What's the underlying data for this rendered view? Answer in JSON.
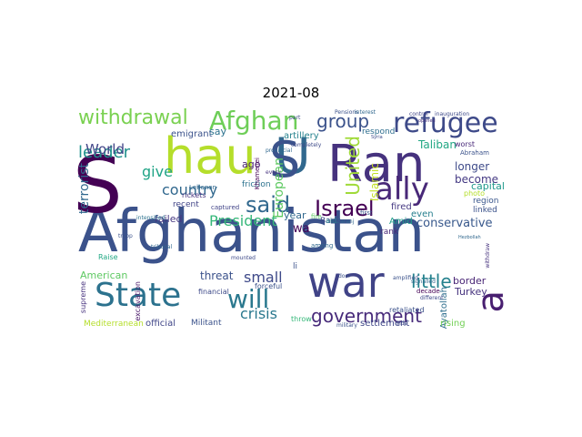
{
  "figure": {
    "title": "2021-08"
  },
  "word_cloud": {
    "words": [
      {
        "text": "Afghanistan",
        "color": "#3b528b"
      },
      {
        "text": "war",
        "color": "#404387"
      },
      {
        "text": "Ran",
        "color": "#46327e"
      },
      {
        "text": "S",
        "color": "#440154"
      },
      {
        "text": "hau",
        "color": "#b5de2b"
      },
      {
        "text": "U",
        "color": "#31688e"
      },
      {
        "text": "S",
        "color": "#3b528b"
      },
      {
        "text": "State",
        "color": "#2c728e"
      },
      {
        "text": "a",
        "color": "#481f70"
      },
      {
        "text": "refugee",
        "color": "#3e4a89"
      },
      {
        "text": "Afghan",
        "color": "#6ece58"
      },
      {
        "text": "ally",
        "color": "#482878"
      },
      {
        "text": "will",
        "color": "#2a788e"
      },
      {
        "text": "said",
        "color": "#31688e"
      },
      {
        "text": "Israel",
        "color": "#440154"
      },
      {
        "text": "withdrawal",
        "color": "#7ad151"
      },
      {
        "text": "group",
        "color": "#3b528b"
      },
      {
        "text": "government",
        "color": "#472a7a"
      },
      {
        "text": "United",
        "color": "#a0da39"
      },
      {
        "text": "little",
        "color": "#26828e"
      },
      {
        "text": "leader",
        "color": "#21918c"
      },
      {
        "text": "country",
        "color": "#31688e"
      },
      {
        "text": "President",
        "color": "#35b779"
      },
      {
        "text": "give",
        "color": "#20a486"
      },
      {
        "text": "World",
        "color": "#414487"
      },
      {
        "text": "small",
        "color": "#3e4989"
      },
      {
        "text": "crisis",
        "color": "#2a788e"
      },
      {
        "text": "European",
        "color": "#5ec962"
      },
      {
        "text": "Islamic",
        "color": "#c2df23"
      },
      {
        "text": "conservative",
        "color": "#38588c"
      },
      {
        "text": "Taliban",
        "color": "#22a884"
      },
      {
        "text": "capital",
        "color": "#1f988b"
      },
      {
        "text": "become",
        "color": "#443983"
      },
      {
        "text": "longer",
        "color": "#3e4a89"
      },
      {
        "text": "terrorist",
        "color": "#31688e"
      },
      {
        "text": "border",
        "color": "#482475"
      },
      {
        "text": "Turkey",
        "color": "#46337e"
      },
      {
        "text": "American",
        "color": "#5ec962"
      },
      {
        "text": "threat",
        "color": "#3b528b"
      },
      {
        "text": "failed",
        "color": "#453781"
      },
      {
        "text": "emigrant",
        "color": "#3b528b"
      },
      {
        "text": "say",
        "color": "#2c728e"
      },
      {
        "text": "ago",
        "color": "#482173"
      },
      {
        "text": "artillery",
        "color": "#26828e"
      },
      {
        "text": "respond",
        "color": "#2e6e8e"
      },
      {
        "text": "settlement",
        "color": "#3f4788"
      },
      {
        "text": "Mediterranean",
        "color": "#b5de2b"
      },
      {
        "text": "official",
        "color": "#404688"
      },
      {
        "text": "Militant",
        "color": "#3b528b"
      },
      {
        "text": "Ayatollah",
        "color": "#2e6f8e"
      },
      {
        "text": "rising",
        "color": "#73d056"
      },
      {
        "text": "region",
        "color": "#39568c"
      },
      {
        "text": "linked",
        "color": "#3b528b"
      },
      {
        "text": "fired",
        "color": "#453882"
      },
      {
        "text": "even",
        "color": "#277f8e"
      },
      {
        "text": "Amid",
        "color": "#1f9e89"
      },
      {
        "text": "year",
        "color": "#31688e"
      },
      {
        "text": "Bank",
        "color": "#3e4a89"
      },
      {
        "text": "rank",
        "color": "#482878"
      },
      {
        "text": "wa",
        "color": "#440154"
      },
      {
        "text": "recent",
        "color": "#414487"
      },
      {
        "text": "intensified",
        "color": "#2c728e"
      },
      {
        "text": "rickets",
        "color": "#46327e"
      },
      {
        "text": "Lebanon",
        "color": "#31688e"
      },
      {
        "text": "friction",
        "color": "#2c728e"
      },
      {
        "text": "forceful",
        "color": "#3b528b"
      },
      {
        "text": "captured",
        "color": "#404387"
      },
      {
        "text": "Raise",
        "color": "#22a884"
      },
      {
        "text": "excavation",
        "color": "#481668"
      },
      {
        "text": "financial",
        "color": "#3e4a89"
      },
      {
        "text": "supreme",
        "color": "#46327e"
      },
      {
        "text": "Pensions",
        "color": "#3b528b"
      },
      {
        "text": "interest",
        "color": "#31688e"
      },
      {
        "text": "control",
        "color": "#404387"
      },
      {
        "text": "inauguration",
        "color": "#3e4a89"
      },
      {
        "text": "worst",
        "color": "#482878"
      },
      {
        "text": "Abraham",
        "color": "#3b528b"
      },
      {
        "text": "photo",
        "color": "#b5de2b"
      },
      {
        "text": "completely",
        "color": "#3e4a89"
      },
      {
        "text": "Khamenei",
        "color": "#440154"
      },
      {
        "text": "provincial",
        "color": "#31688e"
      },
      {
        "text": "troop",
        "color": "#3b528b"
      },
      {
        "text": "opened",
        "color": "#46327e"
      },
      {
        "text": "Hezbollah",
        "color": "#31688e"
      },
      {
        "text": "Syria",
        "color": "#3e4a89"
      },
      {
        "text": "retaliated",
        "color": "#3b528b"
      },
      {
        "text": "signalled",
        "color": "#31688e"
      },
      {
        "text": "different",
        "color": "#3e4a89"
      },
      {
        "text": "decade",
        "color": "#440154"
      },
      {
        "text": "withdraw",
        "color": "#46327e"
      },
      {
        "text": "amplified",
        "color": "#3b528b"
      },
      {
        "text": "side",
        "color": "#3e4a89"
      },
      {
        "text": "throw",
        "color": "#35b779"
      },
      {
        "text": "among",
        "color": "#31688e"
      },
      {
        "text": "fire",
        "color": "#5ec962"
      },
      {
        "text": "first",
        "color": "#3b528b"
      },
      {
        "text": "aid",
        "color": "#26828e"
      },
      {
        "text": "part",
        "color": "#3e4a89"
      },
      {
        "text": "Zaranj",
        "color": "#31688e"
      },
      {
        "text": "door",
        "color": "#3b528b"
      },
      {
        "text": "every",
        "color": "#46327e"
      },
      {
        "text": "military",
        "color": "#3b528b"
      },
      {
        "text": "mounted",
        "color": "#3e4a89"
      },
      {
        "text": "tribunal",
        "color": "#31688e"
      },
      {
        "text": "li",
        "color": "#3b528b"
      }
    ]
  }
}
